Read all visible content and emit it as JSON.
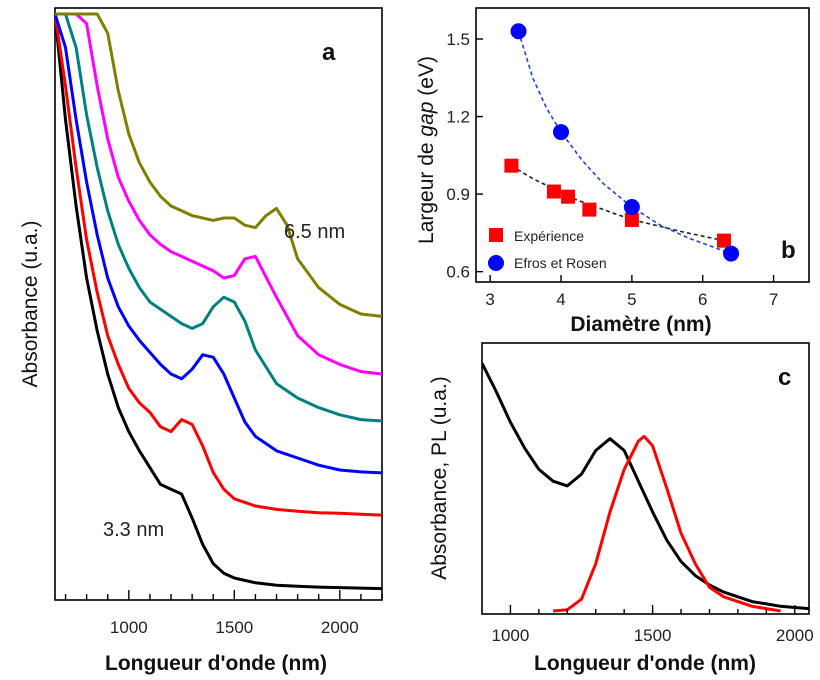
{
  "chart_data": [
    {
      "panel": "a",
      "type": "line",
      "xlabel": "Longueur d'onde (nm)",
      "ylabel": "Absorbance (u.a.)",
      "xlim": [
        650,
        2200
      ],
      "xticks": [
        1000,
        1500,
        2000
      ],
      "annotations": [
        "6.5 nm",
        "3.3 nm"
      ],
      "series": [
        {
          "color": "#000000",
          "x": [
            650,
            700,
            750,
            800,
            850,
            900,
            950,
            1000,
            1050,
            1100,
            1150,
            1200,
            1250,
            1300,
            1350,
            1400,
            1450,
            1500,
            1600,
            1700,
            1800,
            1900,
            2000,
            2100,
            2200
          ],
          "y": [
            12,
            9.8,
            8.0,
            6.5,
            5.4,
            4.5,
            3.8,
            3.3,
            2.9,
            2.55,
            2.2,
            2.1,
            2.0,
            1.5,
            0.95,
            0.55,
            0.35,
            0.25,
            0.15,
            0.1,
            0.08,
            0.06,
            0.05,
            0.04,
            0.03
          ]
        },
        {
          "color": "#ff0000",
          "x": [
            650,
            700,
            750,
            800,
            850,
            900,
            950,
            1000,
            1050,
            1100,
            1150,
            1200,
            1250,
            1300,
            1350,
            1400,
            1450,
            1500,
            1600,
            1700,
            1800,
            1900,
            2000,
            2100,
            2200
          ],
          "y": [
            12,
            10.5,
            8.8,
            7.3,
            6.2,
            5.3,
            4.7,
            4.2,
            3.9,
            3.7,
            3.4,
            3.3,
            3.55,
            3.45,
            3.0,
            2.45,
            2.1,
            1.9,
            1.75,
            1.68,
            1.64,
            1.61,
            1.6,
            1.58,
            1.56
          ]
        },
        {
          "color": "#0000ff",
          "x": [
            650,
            700,
            750,
            800,
            850,
            900,
            950,
            1000,
            1050,
            1100,
            1150,
            1200,
            1250,
            1300,
            1350,
            1400,
            1450,
            1500,
            1550,
            1600,
            1700,
            1800,
            1900,
            2000,
            2100,
            2200
          ],
          "y": [
            12,
            11.3,
            9.8,
            8.5,
            7.4,
            6.5,
            5.9,
            5.5,
            5.2,
            4.95,
            4.7,
            4.5,
            4.4,
            4.6,
            4.9,
            4.85,
            4.5,
            4.0,
            3.5,
            3.2,
            2.9,
            2.75,
            2.6,
            2.5,
            2.46,
            2.44
          ]
        },
        {
          "color": "#008080",
          "x": [
            650,
            700,
            750,
            800,
            850,
            900,
            950,
            1000,
            1050,
            1100,
            1150,
            1200,
            1250,
            1300,
            1350,
            1400,
            1450,
            1500,
            1550,
            1600,
            1700,
            1800,
            1900,
            2000,
            2100,
            2200
          ],
          "y": [
            12,
            12,
            11.3,
            9.9,
            8.8,
            7.9,
            7.2,
            6.7,
            6.3,
            6.0,
            5.85,
            5.7,
            5.55,
            5.45,
            5.55,
            5.9,
            6.1,
            6.0,
            5.6,
            5.0,
            4.3,
            4.0,
            3.8,
            3.65,
            3.55,
            3.52
          ]
        },
        {
          "color": "#ff00ff",
          "x": [
            650,
            700,
            750,
            800,
            850,
            900,
            950,
            1000,
            1050,
            1100,
            1150,
            1200,
            1250,
            1300,
            1350,
            1400,
            1450,
            1500,
            1550,
            1600,
            1700,
            1800,
            1900,
            2000,
            2100,
            2200
          ],
          "y": [
            12,
            12,
            12,
            11.8,
            10.5,
            9.4,
            8.6,
            8.1,
            7.7,
            7.4,
            7.2,
            7.05,
            6.95,
            6.85,
            6.75,
            6.65,
            6.5,
            6.55,
            6.9,
            6.95,
            6.1,
            5.3,
            4.9,
            4.7,
            4.55,
            4.5
          ]
        },
        {
          "color": "#808000",
          "x": [
            650,
            700,
            750,
            800,
            850,
            900,
            950,
            1000,
            1050,
            1100,
            1150,
            1200,
            1250,
            1300,
            1350,
            1400,
            1450,
            1500,
            1550,
            1600,
            1650,
            1700,
            1750,
            1800,
            1900,
            2000,
            2100,
            2200
          ],
          "y": [
            12,
            12,
            12,
            12,
            12,
            11.6,
            10.4,
            9.5,
            8.9,
            8.5,
            8.2,
            8.0,
            7.9,
            7.8,
            7.75,
            7.7,
            7.75,
            7.75,
            7.6,
            7.55,
            7.8,
            7.95,
            7.6,
            6.9,
            6.3,
            5.95,
            5.75,
            5.7
          ]
        }
      ]
    },
    {
      "panel": "b",
      "type": "scatter",
      "xlabel": "Diamètre (nm)",
      "ylabel_pre": "Largeur de ",
      "ylabel_italic": "gap",
      "ylabel_post": " (eV)",
      "xlim": [
        2.8,
        7.5
      ],
      "ylim": [
        0.56,
        1.62
      ],
      "xticks": [
        3,
        4,
        5,
        6,
        7
      ],
      "yticks": [
        0.6,
        0.9,
        1.2,
        1.5
      ],
      "ytick_labels": [
        "0.6",
        "0.9",
        "1.2",
        "1.5"
      ],
      "series": [
        {
          "name": "Expérience",
          "color": "#ff0000",
          "marker": "square",
          "x": [
            3.3,
            3.9,
            4.1,
            4.4,
            5.0,
            6.3
          ],
          "y": [
            1.01,
            0.91,
            0.89,
            0.84,
            0.8,
            0.72
          ]
        },
        {
          "name": "Efros et Rosen",
          "color": "#0000ff",
          "marker": "circle",
          "x": [
            3.4,
            4.0,
            5.0,
            6.4
          ],
          "y": [
            1.53,
            1.14,
            0.85,
            0.67
          ]
        }
      ],
      "fits": [
        {
          "color": "#222222",
          "x": [
            3.3,
            3.6,
            3.9,
            4.2,
            4.5,
            4.8,
            5.1,
            5.4,
            5.7,
            6.0,
            6.3
          ],
          "y": [
            1.01,
            0.96,
            0.92,
            0.88,
            0.85,
            0.82,
            0.795,
            0.775,
            0.755,
            0.737,
            0.72
          ]
        },
        {
          "color": "#2244cc",
          "x": [
            3.4,
            3.6,
            3.8,
            4.0,
            4.3,
            4.6,
            5.0,
            5.4,
            5.8,
            6.2,
            6.4
          ],
          "y": [
            1.53,
            1.35,
            1.23,
            1.14,
            1.03,
            0.94,
            0.85,
            0.78,
            0.73,
            0.69,
            0.67
          ]
        }
      ]
    },
    {
      "panel": "c",
      "type": "line",
      "xlabel": "Longueur d'onde (nm)",
      "ylabel": "Absorbance,  PL (u.a.)",
      "xlim": [
        900,
        2050
      ],
      "xticks": [
        1000,
        1500,
        2000
      ],
      "series": [
        {
          "color": "#000000",
          "x": [
            900,
            950,
            1000,
            1050,
            1100,
            1150,
            1200,
            1250,
            1300,
            1350,
            1400,
            1450,
            1500,
            1550,
            1600,
            1650,
            1700,
            1750,
            1800,
            1850,
            1900,
            1950,
            2000,
            2050
          ],
          "y": [
            1.05,
            0.93,
            0.8,
            0.69,
            0.6,
            0.55,
            0.53,
            0.58,
            0.68,
            0.73,
            0.68,
            0.55,
            0.42,
            0.3,
            0.21,
            0.15,
            0.11,
            0.08,
            0.06,
            0.04,
            0.03,
            0.02,
            0.015,
            0.01
          ]
        },
        {
          "color": "#ff0000",
          "x": [
            1150,
            1200,
            1250,
            1300,
            1350,
            1400,
            1450,
            1470,
            1500,
            1550,
            1600,
            1650,
            1700,
            1750,
            1800,
            1850,
            1900,
            1950
          ],
          "y": [
            0.0,
            0.005,
            0.05,
            0.2,
            0.42,
            0.6,
            0.72,
            0.74,
            0.7,
            0.52,
            0.33,
            0.2,
            0.1,
            0.06,
            0.04,
            0.02,
            0.01,
            0.0
          ]
        }
      ]
    }
  ]
}
